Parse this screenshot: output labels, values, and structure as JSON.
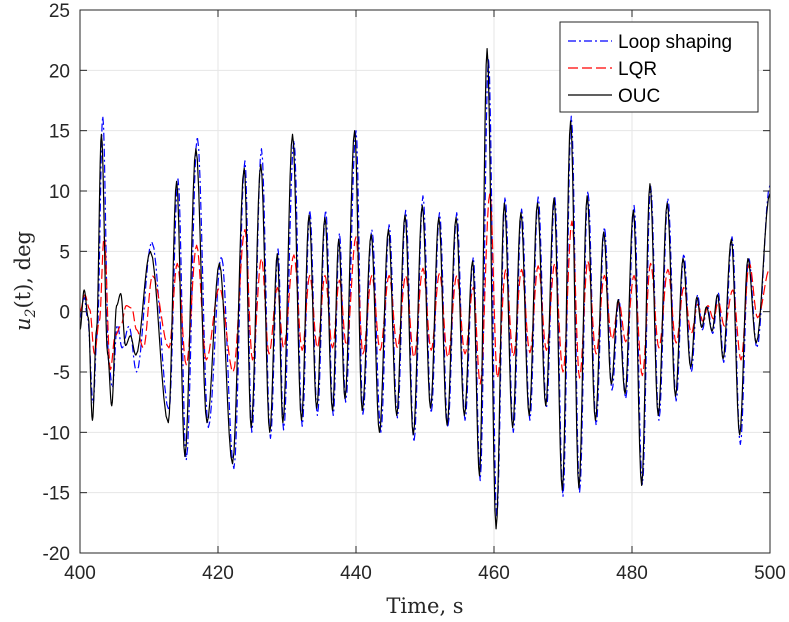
{
  "chart_data": {
    "type": "line",
    "title": "",
    "xlabel": "Time, s",
    "ylabel_main": "u",
    "ylabel_sub": "2",
    "ylabel_rest": "(t), deg",
    "xlim": [
      400,
      500
    ],
    "ylim": [
      -20,
      25
    ],
    "xticks": [
      400,
      420,
      440,
      460,
      480,
      500
    ],
    "yticks": [
      -20,
      -15,
      -10,
      -5,
      0,
      5,
      10,
      15,
      20,
      25
    ],
    "grid": true,
    "legend_position": "top-right",
    "peaks_note": "x = time of local extremum (s), y = value (deg)",
    "series": [
      {
        "name": "Loop shaping",
        "color": "#0000ff",
        "dash": "8 3 2 3",
        "points": [
          [
            400,
            -0.5
          ],
          [
            400.6,
            1.2
          ],
          [
            401.1,
            -0.5
          ],
          [
            401.9,
            -7.6
          ],
          [
            402.5,
            -1.8
          ],
          [
            403.3,
            16.2
          ],
          [
            404.2,
            -4.5
          ],
          [
            404.7,
            -6.3
          ],
          [
            405.4,
            -1.1
          ],
          [
            406.1,
            -3.0
          ],
          [
            407.1,
            -1.2
          ],
          [
            408.2,
            -5.0
          ],
          [
            410.4,
            5.8
          ],
          [
            412.9,
            -8.2
          ],
          [
            414.2,
            11.0
          ],
          [
            415.4,
            -12.3
          ],
          [
            417.0,
            14.5
          ],
          [
            418.6,
            -9.6
          ],
          [
            420.5,
            4.6
          ],
          [
            422.3,
            -13.0
          ],
          [
            423.9,
            12.5
          ],
          [
            424.9,
            -10.0
          ],
          [
            426.3,
            13.5
          ],
          [
            427.6,
            -10.5
          ],
          [
            428.7,
            5.2
          ],
          [
            429.5,
            -9.8
          ],
          [
            431.0,
            14.2
          ],
          [
            432.2,
            -9.5
          ],
          [
            433.3,
            8.4
          ],
          [
            434.4,
            -8.6
          ],
          [
            435.6,
            8.4
          ],
          [
            436.7,
            -8.6
          ],
          [
            437.6,
            6.5
          ],
          [
            438.5,
            -7.5
          ],
          [
            440.0,
            15.0
          ],
          [
            441.0,
            -8.5
          ],
          [
            442.3,
            6.8
          ],
          [
            443.6,
            -10.0
          ],
          [
            444.8,
            7.2
          ],
          [
            446.0,
            -8.8
          ],
          [
            447.2,
            8.4
          ],
          [
            448.4,
            -10.8
          ],
          [
            449.7,
            9.6
          ],
          [
            450.9,
            -8.4
          ],
          [
            452.1,
            8.2
          ],
          [
            453.3,
            -9.6
          ],
          [
            454.6,
            8.2
          ],
          [
            455.8,
            -9.0
          ],
          [
            457.0,
            4.5
          ],
          [
            458.0,
            -14.0
          ],
          [
            459.2,
            21.0
          ],
          [
            460.4,
            -17.0
          ],
          [
            461.6,
            9.5
          ],
          [
            462.8,
            -10.0
          ],
          [
            464.0,
            8.5
          ],
          [
            465.2,
            -9.0
          ],
          [
            466.4,
            9.5
          ],
          [
            467.6,
            -8.0
          ],
          [
            468.8,
            9.6
          ],
          [
            470.0,
            -15.3
          ],
          [
            471.2,
            16.2
          ],
          [
            472.4,
            -15.0
          ],
          [
            473.6,
            10.0
          ],
          [
            474.8,
            -9.4
          ],
          [
            476.0,
            7.0
          ],
          [
            477.1,
            -6.5
          ],
          [
            478.1,
            1.0
          ],
          [
            479.1,
            -7.2
          ],
          [
            480.3,
            8.8
          ],
          [
            481.5,
            -14.3
          ],
          [
            482.7,
            10.4
          ],
          [
            483.9,
            -9.0
          ],
          [
            485.2,
            9.4
          ],
          [
            486.4,
            -7.4
          ],
          [
            487.5,
            4.8
          ],
          [
            488.6,
            -5.0
          ],
          [
            489.5,
            1.4
          ],
          [
            490.2,
            -1.5
          ],
          [
            490.9,
            0.5
          ],
          [
            491.7,
            -1.8
          ],
          [
            492.5,
            1.6
          ],
          [
            493.3,
            -4.2
          ],
          [
            494.5,
            6.2
          ],
          [
            495.7,
            -11.0
          ],
          [
            496.9,
            4.5
          ],
          [
            498.1,
            -3.0
          ],
          [
            500,
            10.5
          ]
        ]
      },
      {
        "name": "LQR",
        "color": "#ff0000",
        "dash": "10 4",
        "points": [
          [
            400,
            0.0
          ],
          [
            400.7,
            1.4
          ],
          [
            401.4,
            0.2
          ],
          [
            402.1,
            -3.5
          ],
          [
            402.8,
            -0.8
          ],
          [
            403.5,
            6.2
          ],
          [
            404.4,
            -4.8
          ],
          [
            405.1,
            -2.0
          ],
          [
            405.9,
            -1.2
          ],
          [
            406.7,
            0.5
          ],
          [
            407.5,
            0.3
          ],
          [
            408.2,
            -1.5
          ],
          [
            409.2,
            -3.0
          ],
          [
            410.5,
            3.0
          ],
          [
            412.9,
            -3.0
          ],
          [
            414.1,
            4.0
          ],
          [
            415.4,
            -4.4
          ],
          [
            416.9,
            5.5
          ],
          [
            418.3,
            -4.0
          ],
          [
            420.2,
            2.0
          ],
          [
            422.2,
            -5.0
          ],
          [
            423.9,
            6.8
          ],
          [
            425.0,
            -4.0
          ],
          [
            426.3,
            4.4
          ],
          [
            427.4,
            -3.5
          ],
          [
            428.6,
            2.0
          ],
          [
            429.5,
            -3.0
          ],
          [
            431.0,
            4.7
          ],
          [
            432.2,
            -3.2
          ],
          [
            433.3,
            3.0
          ],
          [
            434.4,
            -3.0
          ],
          [
            435.5,
            3.0
          ],
          [
            436.6,
            -3.0
          ],
          [
            437.6,
            2.6
          ],
          [
            438.6,
            -2.8
          ],
          [
            440.0,
            6.2
          ],
          [
            441.0,
            -3.5
          ],
          [
            442.3,
            3.0
          ],
          [
            443.5,
            -3.2
          ],
          [
            444.8,
            3.0
          ],
          [
            446.0,
            -3.0
          ],
          [
            447.2,
            3.0
          ],
          [
            448.4,
            -3.8
          ],
          [
            449.7,
            3.6
          ],
          [
            450.9,
            -3.2
          ],
          [
            452.1,
            3.2
          ],
          [
            453.3,
            -3.8
          ],
          [
            454.6,
            3.0
          ],
          [
            455.8,
            -3.5
          ],
          [
            457.0,
            2.0
          ],
          [
            458.0,
            -6.0
          ],
          [
            459.4,
            9.8
          ],
          [
            460.5,
            -5.5
          ],
          [
            461.7,
            3.5
          ],
          [
            462.8,
            -3.7
          ],
          [
            464.0,
            3.5
          ],
          [
            465.2,
            -3.4
          ],
          [
            466.4,
            3.8
          ],
          [
            467.6,
            -3.2
          ],
          [
            468.8,
            4.0
          ],
          [
            470.0,
            -5.0
          ],
          [
            471.3,
            7.5
          ],
          [
            472.4,
            -5.5
          ],
          [
            473.6,
            4.2
          ],
          [
            474.8,
            -3.5
          ],
          [
            476.0,
            3.0
          ],
          [
            477.1,
            -2.3
          ],
          [
            478.1,
            0.8
          ],
          [
            479.1,
            -2.5
          ],
          [
            480.3,
            3.0
          ],
          [
            481.5,
            -5.3
          ],
          [
            482.7,
            4.0
          ],
          [
            483.9,
            -3.0
          ],
          [
            485.2,
            3.5
          ],
          [
            486.4,
            -2.6
          ],
          [
            487.5,
            2.0
          ],
          [
            488.6,
            -1.8
          ],
          [
            489.5,
            0.6
          ],
          [
            490.3,
            -0.8
          ],
          [
            491.0,
            0.5
          ],
          [
            491.8,
            -0.6
          ],
          [
            492.5,
            0.8
          ],
          [
            493.4,
            -1.2
          ],
          [
            494.6,
            1.8
          ],
          [
            495.8,
            -4.0
          ],
          [
            497.0,
            4.0
          ],
          [
            498.2,
            -0.5
          ],
          [
            500,
            3.6
          ]
        ]
      },
      {
        "name": "OUC",
        "color": "#000000",
        "dash": "",
        "points": [
          [
            400,
            -1.5
          ],
          [
            400.6,
            1.8
          ],
          [
            401.2,
            -0.5
          ],
          [
            401.8,
            -9.0
          ],
          [
            402.4,
            -1.5
          ],
          [
            403.1,
            14.7
          ],
          [
            404.0,
            -3.5
          ],
          [
            404.6,
            -7.8
          ],
          [
            405.3,
            0.5
          ],
          [
            405.9,
            1.5
          ],
          [
            406.6,
            -2.8
          ],
          [
            407.3,
            -2.0
          ],
          [
            408.1,
            -3.6
          ],
          [
            410.2,
            5.0
          ],
          [
            412.8,
            -9.2
          ],
          [
            414.0,
            10.8
          ],
          [
            415.2,
            -12.0
          ],
          [
            416.8,
            13.5
          ],
          [
            418.4,
            -9.2
          ],
          [
            420.2,
            4.0
          ],
          [
            422.1,
            -12.6
          ],
          [
            423.8,
            11.9
          ],
          [
            424.8,
            -9.6
          ],
          [
            426.2,
            12.2
          ],
          [
            427.5,
            -10.0
          ],
          [
            428.6,
            4.8
          ],
          [
            429.4,
            -9.2
          ],
          [
            430.8,
            14.7
          ],
          [
            432.1,
            -9.0
          ],
          [
            433.2,
            8.0
          ],
          [
            434.3,
            -8.0
          ],
          [
            435.5,
            7.8
          ],
          [
            436.6,
            -8.2
          ],
          [
            437.5,
            6.0
          ],
          [
            438.4,
            -7.2
          ],
          [
            439.8,
            15.0
          ],
          [
            440.9,
            -8.2
          ],
          [
            442.2,
            6.4
          ],
          [
            443.4,
            -10.0
          ],
          [
            444.7,
            6.8
          ],
          [
            445.9,
            -8.6
          ],
          [
            447.1,
            8.0
          ],
          [
            448.3,
            -10.2
          ],
          [
            449.6,
            8.8
          ],
          [
            450.8,
            -8.0
          ],
          [
            452.0,
            7.8
          ],
          [
            453.2,
            -9.4
          ],
          [
            454.5,
            7.8
          ],
          [
            455.7,
            -8.6
          ],
          [
            456.9,
            4.2
          ],
          [
            457.9,
            -13.6
          ],
          [
            459.0,
            21.8
          ],
          [
            460.3,
            -18.0
          ],
          [
            461.5,
            9.0
          ],
          [
            462.7,
            -9.6
          ],
          [
            463.9,
            8.2
          ],
          [
            465.1,
            -8.6
          ],
          [
            466.3,
            9.0
          ],
          [
            467.5,
            -7.8
          ],
          [
            468.7,
            9.4
          ],
          [
            469.9,
            -14.8
          ],
          [
            471.1,
            15.8
          ],
          [
            472.3,
            -14.6
          ],
          [
            473.5,
            9.6
          ],
          [
            474.7,
            -9.0
          ],
          [
            475.9,
            6.6
          ],
          [
            477.0,
            -6.0
          ],
          [
            478.0,
            1.0
          ],
          [
            479.0,
            -6.8
          ],
          [
            480.2,
            8.4
          ],
          [
            481.4,
            -14.4
          ],
          [
            482.6,
            10.6
          ],
          [
            483.8,
            -8.6
          ],
          [
            485.1,
            9.0
          ],
          [
            486.3,
            -7.0
          ],
          [
            487.4,
            4.4
          ],
          [
            488.5,
            -4.6
          ],
          [
            489.4,
            1.2
          ],
          [
            490.1,
            -1.3
          ],
          [
            490.8,
            0.4
          ],
          [
            491.6,
            -1.6
          ],
          [
            492.4,
            1.4
          ],
          [
            493.2,
            -3.9
          ],
          [
            494.4,
            6.0
          ],
          [
            495.6,
            -10.2
          ],
          [
            496.8,
            4.4
          ],
          [
            498.0,
            -2.6
          ],
          [
            500,
            9.8
          ]
        ]
      }
    ]
  }
}
